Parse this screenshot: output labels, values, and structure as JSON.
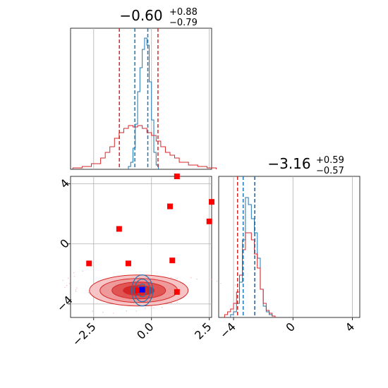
{
  "chart_data": [
    {
      "type": "histogram",
      "panel": "marginal-param-1",
      "title": {
        "median": "−0.60",
        "plus": "+0.88",
        "minus": "−0.79"
      },
      "xlim": [
        -3.5,
        2.6
      ],
      "quantile_lines": {
        "red": [
          -1.39,
          0.28
        ],
        "blue": [
          -0.72,
          -0.16
        ]
      },
      "series": [
        {
          "color": "#1f77b4",
          "bins": [
            -1.0,
            -0.9,
            -0.8,
            -0.7,
            -0.6,
            -0.5,
            -0.4,
            -0.3,
            -0.2,
            -0.1,
            0.0,
            0.1,
            0.2
          ],
          "counts": [
            0.02,
            0.05,
            0.15,
            0.32,
            0.55,
            0.72,
            0.85,
            0.93,
            0.88,
            0.62,
            0.35,
            0.12,
            0.03
          ]
        },
        {
          "color": "#d62728",
          "bins": [
            -3.4,
            -3.0,
            -2.6,
            -2.2,
            -2.0,
            -1.8,
            -1.6,
            -1.4,
            -1.2,
            -1.0,
            -0.8,
            -0.6,
            -0.4,
            -0.2,
            0.0,
            0.2,
            0.4,
            0.6,
            0.8,
            1.0,
            1.2,
            1.6,
            2.0,
            2.4
          ],
          "counts": [
            0.01,
            0.02,
            0.04,
            0.08,
            0.12,
            0.16,
            0.22,
            0.26,
            0.29,
            0.31,
            0.3,
            0.31,
            0.29,
            0.26,
            0.24,
            0.2,
            0.16,
            0.12,
            0.1,
            0.08,
            0.05,
            0.03,
            0.02,
            0.01
          ]
        }
      ]
    },
    {
      "type": "histogram",
      "panel": "marginal-param-2",
      "title": {
        "median": "−3.16",
        "plus": "+0.59",
        "minus": "−0.57"
      },
      "xlim": [
        -5.0,
        4.5
      ],
      "xticks": [
        "−4",
        "0",
        "4"
      ],
      "quantile_lines": {
        "red": [
          -3.73,
          -2.57
        ],
        "blue": [
          -3.35,
          -2.57
        ]
      },
      "series": [
        {
          "color": "#1f77b4",
          "bins": [
            -4.2,
            -4.0,
            -3.8,
            -3.6,
            -3.4,
            -3.2,
            -3.0,
            -2.8,
            -2.6,
            -2.4,
            -2.2,
            -2.0,
            -1.8,
            -1.6,
            -1.4
          ],
          "counts": [
            0.02,
            0.04,
            0.1,
            0.25,
            0.55,
            0.85,
            0.8,
            0.7,
            0.6,
            0.42,
            0.2,
            0.08,
            0.04,
            0.02,
            0.01
          ]
        },
        {
          "color": "#d62728",
          "bins": [
            -4.6,
            -4.4,
            -4.2,
            -4.0,
            -3.8,
            -3.6,
            -3.4,
            -3.2,
            -3.0,
            -2.8,
            -2.6,
            -2.4,
            -2.2,
            -2.0,
            -1.8,
            -1.6,
            -1.4
          ],
          "counts": [
            0.02,
            0.04,
            0.06,
            0.1,
            0.18,
            0.3,
            0.48,
            0.6,
            0.6,
            0.55,
            0.45,
            0.35,
            0.2,
            0.1,
            0.05,
            0.03,
            0.01
          ]
        }
      ]
    },
    {
      "type": "scatter",
      "panel": "joint-param-1-vs-param-2",
      "xlim": [
        -3.5,
        2.6
      ],
      "ylim": [
        -4.9,
        4.5
      ],
      "xticks": [
        "−2.5",
        "0.0",
        "2.5"
      ],
      "yticks": [
        "−4",
        "0",
        "4"
      ],
      "red_points": [
        {
          "x": 1.1,
          "y": 4.5
        },
        {
          "x": 0.8,
          "y": 2.5
        },
        {
          "x": 2.6,
          "y": 2.8
        },
        {
          "x": 2.5,
          "y": 1.5
        },
        {
          "x": -1.4,
          "y": 1.0
        },
        {
          "x": -2.7,
          "y": -1.3
        },
        {
          "x": -1.0,
          "y": -1.3
        },
        {
          "x": 0.9,
          "y": -1.1
        },
        {
          "x": -0.6,
          "y": -3.1
        },
        {
          "x": 1.1,
          "y": -3.2
        }
      ],
      "blue_point": {
        "x": -0.4,
        "y": -3.05
      },
      "red_contour_center": {
        "x": -0.55,
        "y": -3.1
      },
      "blue_contour_center": {
        "x": -0.4,
        "y": -3.1
      }
    }
  ]
}
